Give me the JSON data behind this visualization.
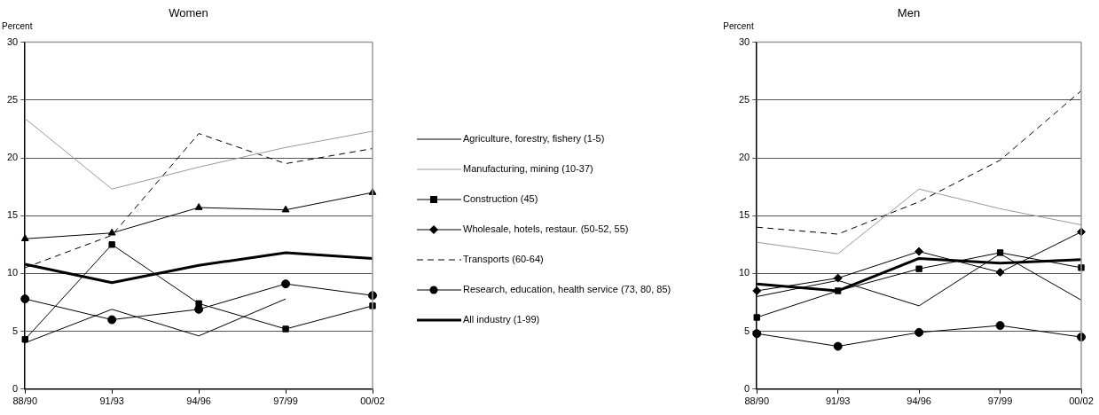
{
  "chart_data": [
    {
      "type": "line",
      "title": "Women",
      "ylabel": "Percent",
      "categories": [
        "88/90",
        "91/93",
        "94/96",
        "97/99",
        "00/02"
      ],
      "ylim": [
        0,
        30
      ],
      "yticks": [
        0,
        5,
        10,
        15,
        20,
        25,
        30
      ],
      "grid": "y",
      "legend": false,
      "series": [
        {
          "color": "#000000",
          "marker": "none",
          "values": [
            4.0,
            6.9,
            4.6,
            7.8,
            null
          ]
        },
        {
          "color": "#999999",
          "marker": "none",
          "values": [
            23.4,
            17.3,
            19.2,
            20.9,
            22.3
          ]
        },
        {
          "color": "#000000",
          "marker": "square",
          "values": [
            4.3,
            12.5,
            7.4,
            5.2,
            7.2
          ]
        },
        {
          "color": "#000000",
          "marker": "triangle",
          "values": [
            13.0,
            13.5,
            15.7,
            15.5,
            17.0
          ]
        },
        {
          "color": "#000000",
          "marker": "none",
          "line_style": "dashed",
          "values": [
            10.5,
            13.3,
            22.1,
            19.5,
            20.8
          ]
        },
        {
          "color": "#000000",
          "marker": "circle",
          "values": [
            7.8,
            6.0,
            6.9,
            9.1,
            8.1
          ]
        },
        {
          "color": "#000000",
          "marker": "none",
          "values": [
            10.8,
            9.2,
            10.7,
            11.8,
            11.3
          ]
        }
      ]
    },
    {
      "type": "line",
      "title": "Men",
      "ylabel": "Percent",
      "categories": [
        "88/90",
        "91/93",
        "94/96",
        "97/99",
        "00/02"
      ],
      "ylim": [
        0,
        30
      ],
      "yticks": [
        0,
        5,
        10,
        15,
        20,
        25,
        30
      ],
      "grid": "y",
      "legend": "left",
      "series": [
        {
          "name": "Agriculture, forestry, fishery (1-5)",
          "color": "#000000",
          "marker": "none",
          "values": [
            8.0,
            9.4,
            7.2,
            11.7,
            7.7
          ]
        },
        {
          "name": "Manufacturing, mining (10-37)",
          "color": "#999999",
          "marker": "none",
          "values": [
            12.7,
            11.7,
            17.3,
            15.6,
            14.2
          ]
        },
        {
          "name": "Construction (45)",
          "color": "#000000",
          "marker": "square",
          "values": [
            6.2,
            8.5,
            10.4,
            11.8,
            10.5
          ]
        },
        {
          "name": "Wholesale, hotels, restaur. (50-52, 55)",
          "color": "#000000",
          "marker": "diamond",
          "values": [
            8.5,
            9.6,
            11.9,
            10.1,
            13.6
          ]
        },
        {
          "name": "Transports (60-64)",
          "color": "#000000",
          "marker": "none",
          "line_style": "dashed",
          "values": [
            14.0,
            13.4,
            16.2,
            19.8,
            25.8
          ]
        },
        {
          "name": "Research, education, health service (73, 80, 85)",
          "color": "#000000",
          "marker": "circle",
          "values": [
            4.8,
            3.7,
            4.9,
            5.5,
            4.5
          ]
        },
        {
          "name": "All industry (1-99)",
          "color": "#000000",
          "marker": "none",
          "values": [
            9.1,
            8.5,
            11.3,
            10.9,
            11.2
          ]
        }
      ]
    }
  ]
}
